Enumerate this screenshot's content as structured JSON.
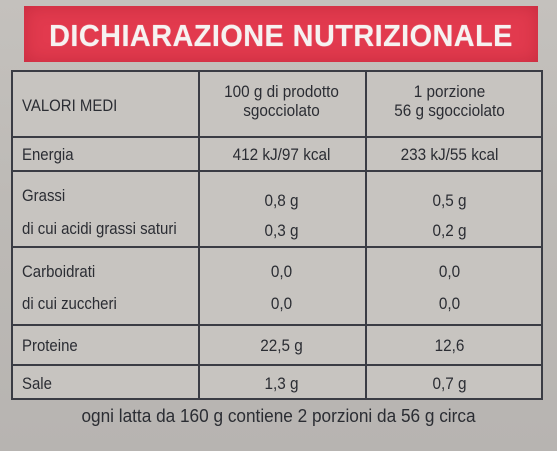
{
  "banner": {
    "title": "DICHIARAZIONE NUTRIZIONALE"
  },
  "table": {
    "header": {
      "col1": "VALORI MEDI",
      "col2_line1": "100 g di prodotto",
      "col2_line2": "sgocciolato",
      "col3_line1": "1 porzione",
      "col3_line2": "56 g sgocciolato"
    },
    "rows": [
      {
        "label": "Energia",
        "per100": "412 kJ/97 kcal",
        "perPortion": "233 kJ/55 kcal"
      },
      {
        "label": "Grassi",
        "per100": "0,8 g",
        "perPortion": "0,5 g"
      },
      {
        "label": "di cui acidi grassi saturi",
        "per100": "0,3 g",
        "perPortion": "0,2 g"
      },
      {
        "label": "Carboidrati",
        "per100": "0,0",
        "perPortion": "0,0"
      },
      {
        "label": "di cui zuccheri",
        "per100": "0,0",
        "perPortion": "0,0"
      },
      {
        "label": "Proteine",
        "per100": "22,5 g",
        "perPortion": "12,6"
      },
      {
        "label": "Sale",
        "per100": "1,3 g",
        "perPortion": "0,7 g"
      }
    ]
  },
  "footer": {
    "note": "ogni latta da 160 g contiene 2 porzioni da 56 g circa"
  }
}
